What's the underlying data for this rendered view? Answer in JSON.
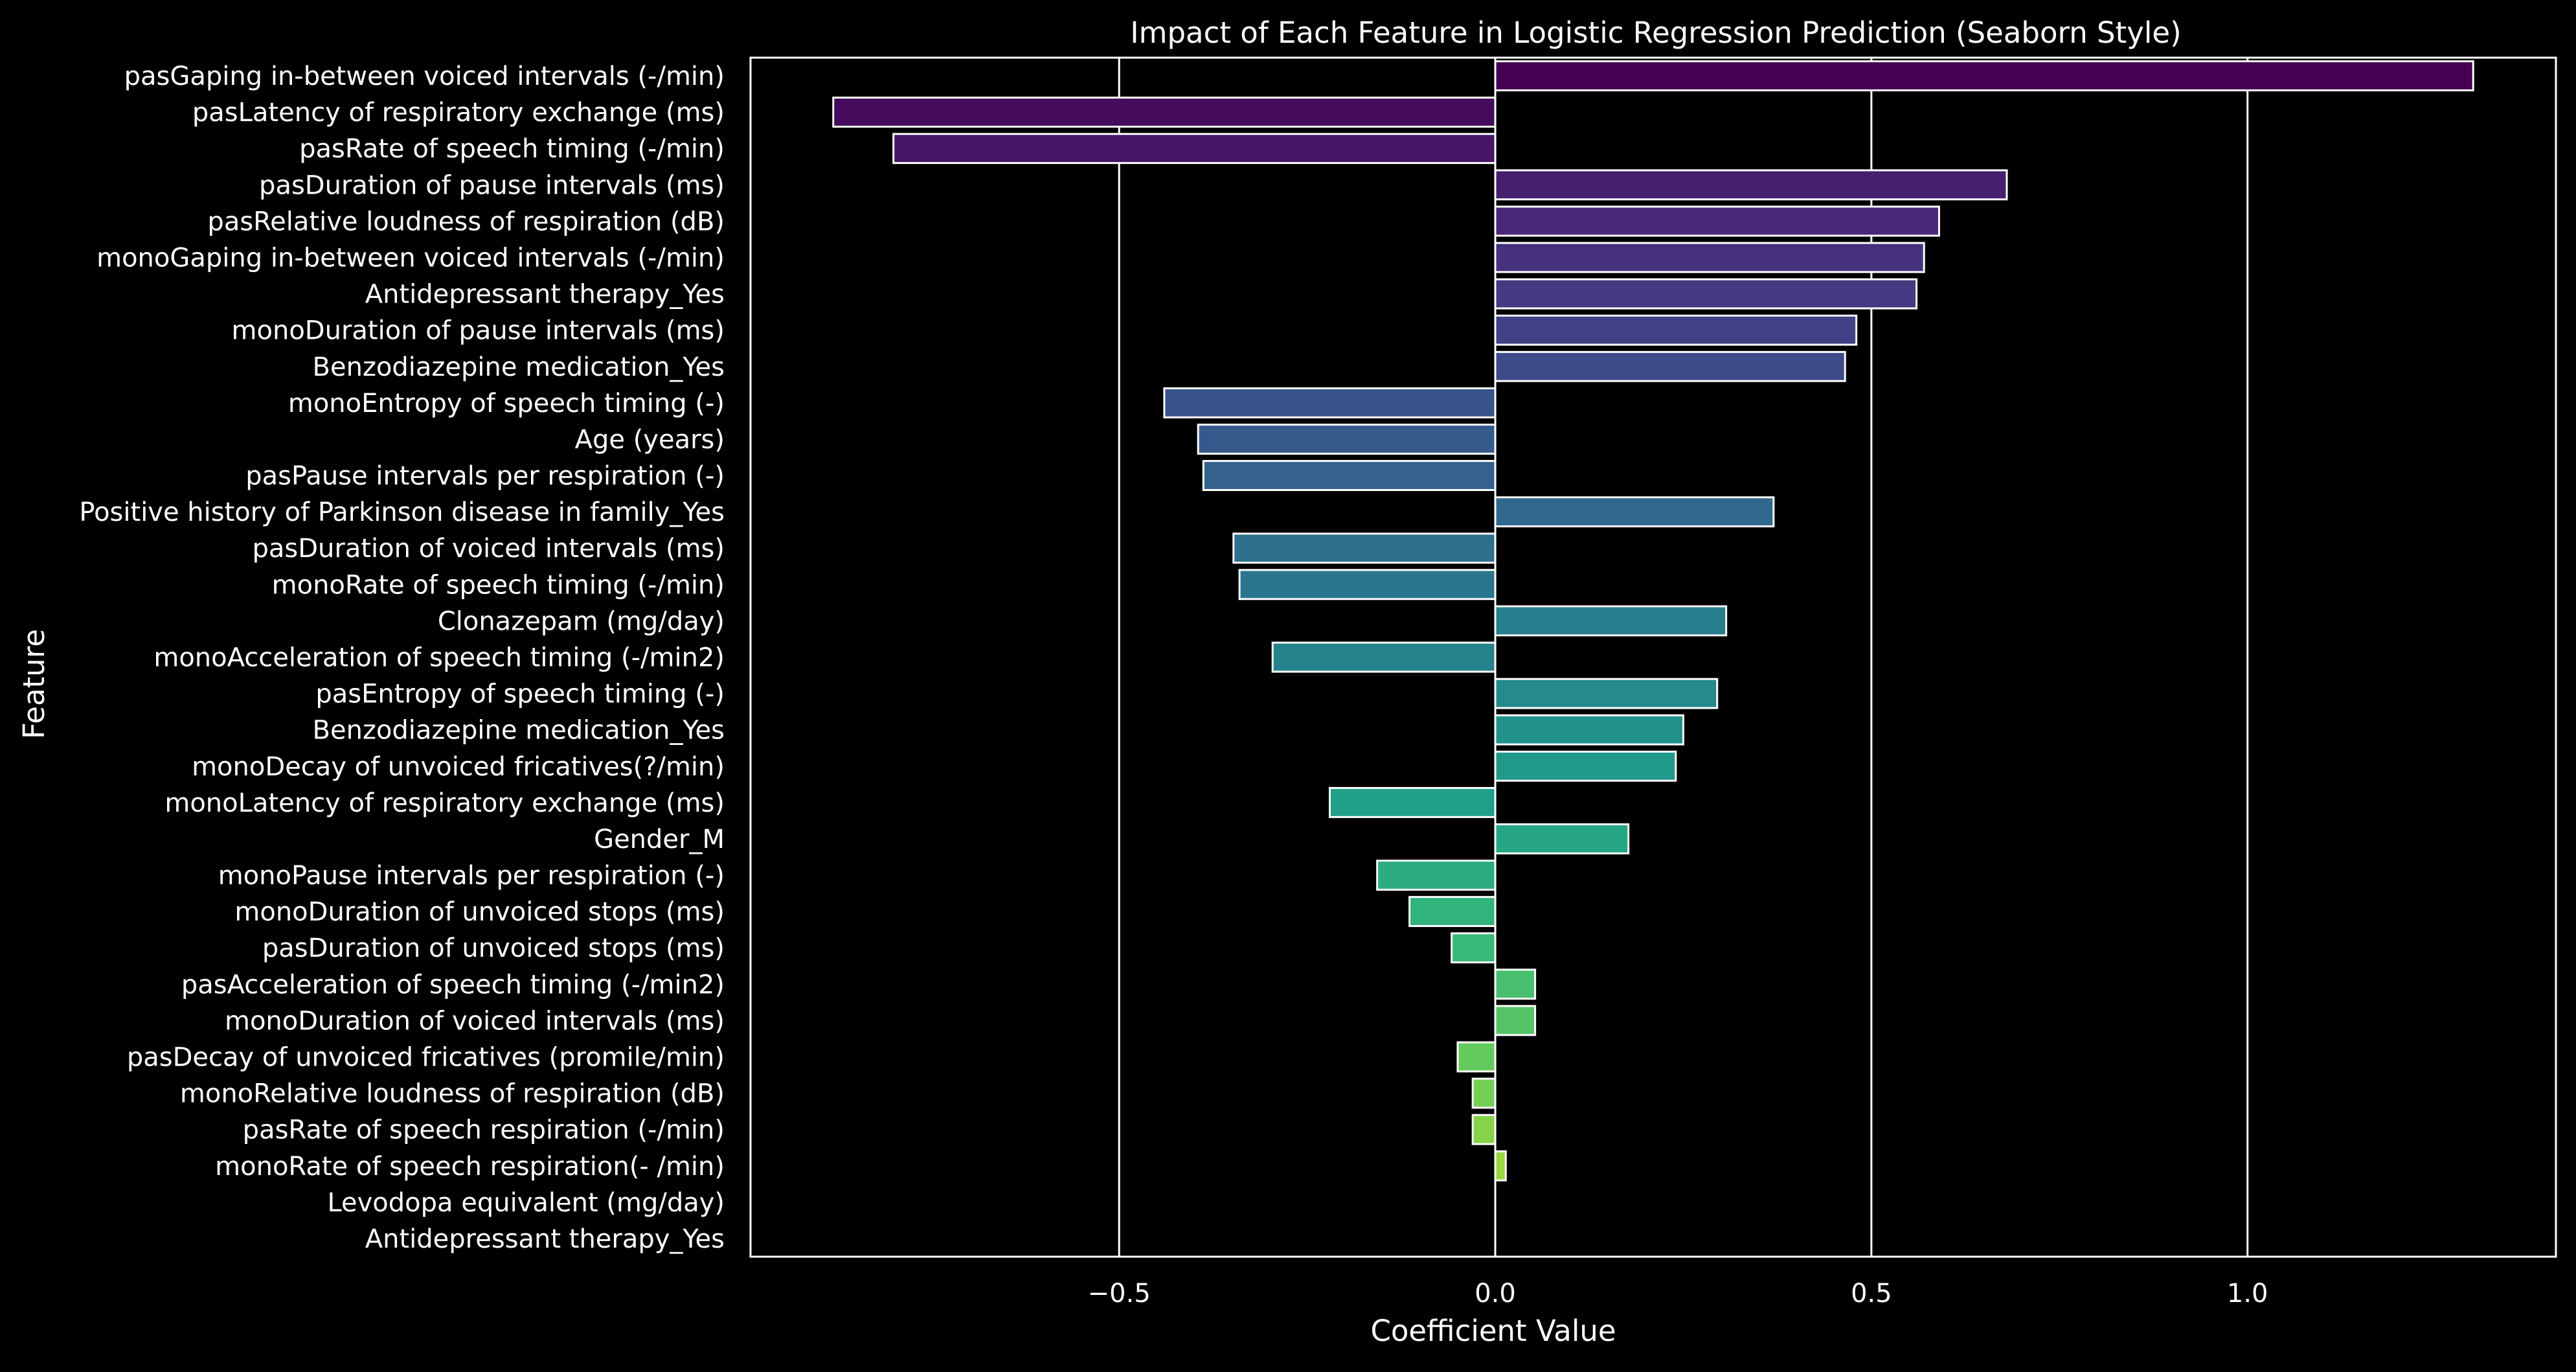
{
  "chart_data": {
    "type": "bar",
    "orientation": "horizontal",
    "title": "Impact of Each Feature in Logistic Regression Prediction (Seaborn Style)",
    "xlabel": "Coefficient Value",
    "ylabel": "Feature",
    "xlim": [
      -0.99,
      1.41
    ],
    "xticks": [
      -0.5,
      0.0,
      0.5,
      1.0
    ],
    "xtick_labels": [
      "−0.5",
      "0.0",
      "0.5",
      "1.0"
    ],
    "grid": "vertical",
    "palette": "viridis",
    "background": "#000000",
    "foreground": "#ffffff",
    "categories": [
      "pasGaping in-between voiced intervals (-/min)",
      "pasLatency of respiratory exchange (ms)",
      "pasRate of speech timing (-/min)",
      "pasDuration of pause intervals (ms)",
      "pasRelative loudness of respiration (dB)",
      "monoGaping in-between voiced intervals (-/min)",
      "Antidepressant therapy_Yes ",
      "monoDuration of pause intervals (ms)",
      "Benzodiazepine medication_Yes ",
      "monoEntropy of speech timing (-)",
      "Age (years)",
      "pasPause intervals per respiration (-)",
      "Positive history of Parkinson disease in family_Yes",
      "pasDuration of voiced intervals (ms)",
      "monoRate of speech timing (-/min)",
      "Clonazepam (mg/day)",
      "monoAcceleration of speech timing (-/min2)",
      "pasEntropy of speech timing (-)",
      "Benzodiazepine medication_Yes",
      "monoDecay of unvoiced fricatives(?/min)",
      "monoLatency of respiratory exchange (ms)",
      "Gender_M",
      "monoPause intervals per respiration (-)",
      "monoDuration of unvoiced stops (ms)",
      "pasDuration of unvoiced stops (ms)",
      "pasAcceleration of speech timing (-/min2)",
      "monoDuration of voiced intervals (ms)",
      "pasDecay of unvoiced fricatives (promile/min)",
      "monoRelative loudness of respiration (dB)",
      "pasRate of speech respiration (-/min)",
      "monoRate of speech respiration(- /min)",
      "Levodopa equivalent (mg/day)",
      "Antidepressant therapy_Yes"
    ],
    "values": [
      1.3,
      -0.88,
      -0.8,
      0.68,
      0.59,
      0.57,
      0.56,
      0.48,
      0.465,
      -0.44,
      -0.395,
      -0.388,
      0.37,
      -0.348,
      -0.34,
      0.307,
      -0.296,
      0.295,
      0.25,
      0.24,
      -0.22,
      0.177,
      -0.157,
      -0.114,
      -0.058,
      0.053,
      0.053,
      -0.05,
      -0.03,
      -0.03,
      0.014,
      0.0,
      0.0
    ]
  }
}
